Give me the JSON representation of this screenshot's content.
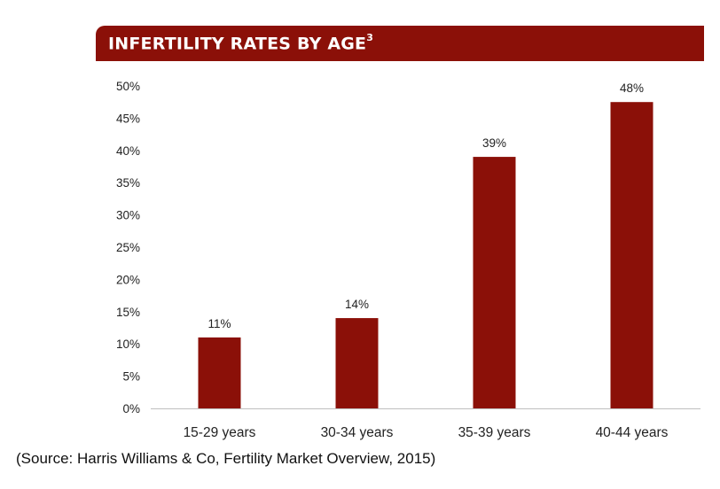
{
  "chart_data": {
    "type": "bar",
    "title": "INFERTILITY RATES BY AGE",
    "title_superscript": "3",
    "categories": [
      "15-29 years",
      "30-34 years",
      "35-39 years",
      "40-44 years"
    ],
    "values": [
      11,
      14,
      39,
      47.5
    ],
    "value_labels": [
      "11%",
      "14%",
      "39%",
      "48%"
    ],
    "ylim": [
      0,
      50
    ],
    "ytick_labels": [
      "0%",
      "5%",
      "10%",
      "15%",
      "20%",
      "25%",
      "30%",
      "35%",
      "40%",
      "45%",
      "50%"
    ],
    "xlabel": "",
    "ylabel": "",
    "grid": false,
    "bar_color": "#8B1008"
  },
  "source": "(Source: Harris Williams & Co, Fertility Market Overview, 2015)"
}
